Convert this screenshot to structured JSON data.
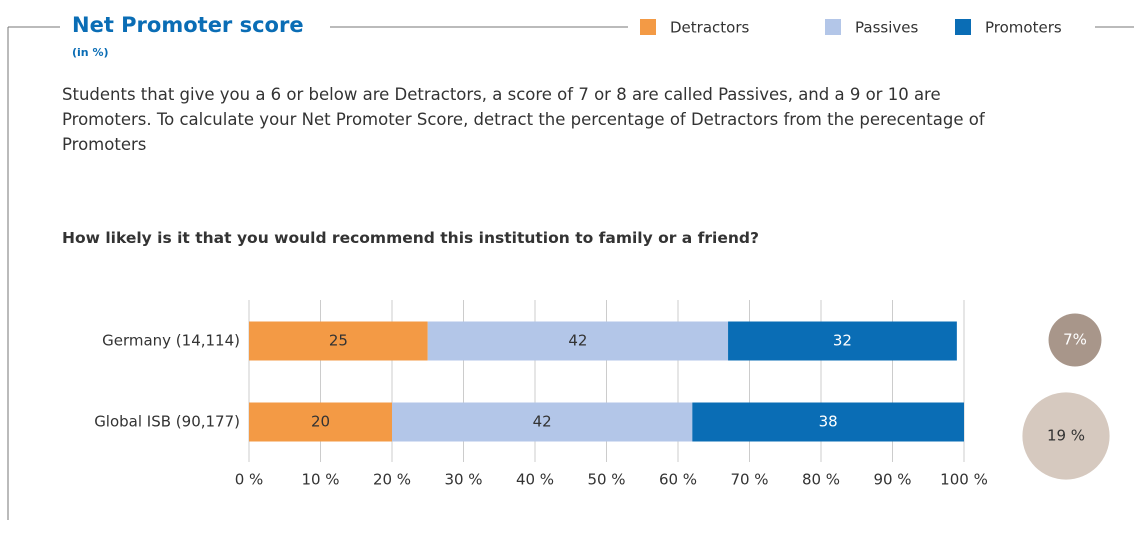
{
  "chart_data": {
    "type": "bar",
    "orientation": "horizontal",
    "stacked": true,
    "title": "Net Promoter score",
    "subtitle": "(in %)",
    "description": "Students that give you a 6 or below are Detractors, a score of 7 or 8 are called Passives, and a 9 or 10 are Promoters. To calculate your Net Promoter Score, detract the percentage of Detractors from the perecentage of Promoters",
    "question": "How likely is it that you would recommend this institution to family or a friend?",
    "categories": [
      "Germany (14,114)",
      "Global ISB (90,177)"
    ],
    "series": [
      {
        "name": "Detractors",
        "color": "#f39a45",
        "values": [
          25,
          20
        ]
      },
      {
        "name": "Passives",
        "color": "#b3c6e8",
        "values": [
          42,
          42
        ]
      },
      {
        "name": "Promoters",
        "color": "#0a6db5",
        "values": [
          32,
          38
        ]
      }
    ],
    "net_score": {
      "values": [
        7,
        19
      ],
      "value_labels": [
        "7%",
        "19 %"
      ],
      "colors": [
        "#a8968a",
        "#d6c9bf"
      ]
    },
    "xlim": [
      0,
      100
    ],
    "xticks": [
      {
        "value": 0,
        "label": "0 %"
      },
      {
        "value": 10,
        "label": "10 %"
      },
      {
        "value": 20,
        "label": "20 %"
      },
      {
        "value": 30,
        "label": "30 %"
      },
      {
        "value": 40,
        "label": "40 %"
      },
      {
        "value": 50,
        "label": "50 %"
      },
      {
        "value": 60,
        "label": "60 %"
      },
      {
        "value": 70,
        "label": "70 %"
      },
      {
        "value": 80,
        "label": "80 %"
      },
      {
        "value": 90,
        "label": "90 %"
      },
      {
        "value": 100,
        "label": "100 %"
      }
    ],
    "grid": true,
    "legend": "top-right"
  }
}
